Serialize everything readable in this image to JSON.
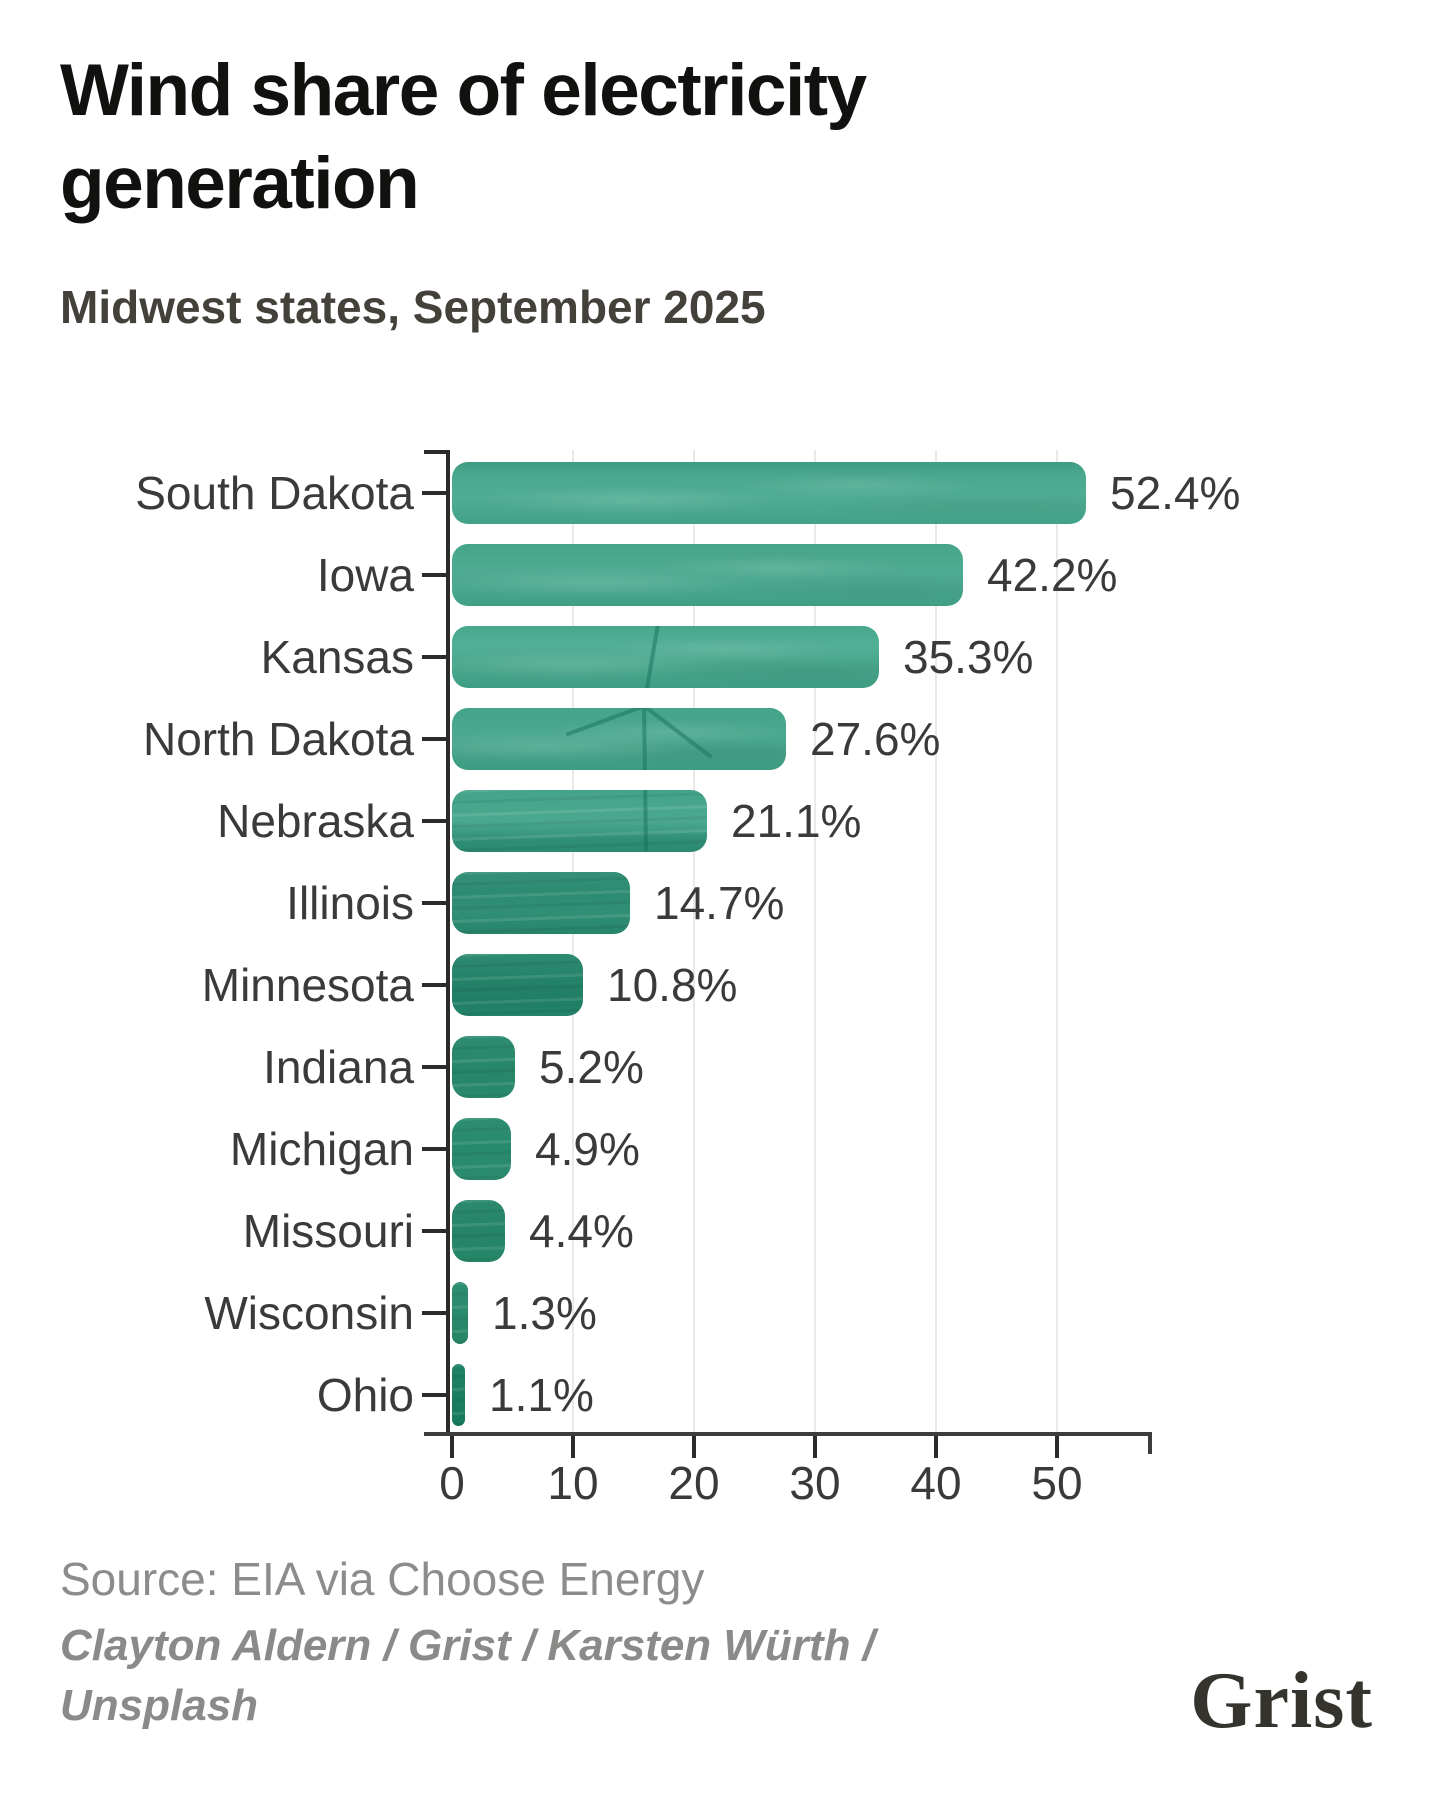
{
  "header": {
    "title": "Wind share of electricity generation",
    "subtitle": "Midwest states, September 2025"
  },
  "chart_data": {
    "type": "bar",
    "orientation": "horizontal",
    "title": "Wind share of electricity generation",
    "subtitle": "Midwest states, September 2025",
    "categories": [
      "South Dakota",
      "Iowa",
      "Kansas",
      "North Dakota",
      "Nebraska",
      "Illinois",
      "Minnesota",
      "Indiana",
      "Michigan",
      "Missouri",
      "Wisconsin",
      "Ohio"
    ],
    "values": [
      52.4,
      42.2,
      35.3,
      27.6,
      21.1,
      14.7,
      10.8,
      5.2,
      4.9,
      4.4,
      1.3,
      1.1
    ],
    "value_labels": [
      "52.4%",
      "42.2%",
      "35.3%",
      "27.6%",
      "21.1%",
      "14.7%",
      "10.8%",
      "5.2%",
      "4.9%",
      "4.4%",
      "1.3%",
      "1.1%"
    ],
    "x_ticks": [
      0,
      10,
      20,
      30,
      40,
      50
    ],
    "xlim": [
      0,
      58
    ],
    "unit": "%",
    "xlabel": "",
    "ylabel": "",
    "grid": "vertical gridlines at x ticks",
    "legend": "none",
    "bar_style": "rounded teal bars filled with wind-turbine photo texture"
  },
  "footer": {
    "source": "Source: EIA via Choose Energy",
    "credit": "Clayton Aldern / Grist / Karsten Würth / Unsplash",
    "logo_text": "Grist"
  },
  "colors": {
    "bar_teal": "#3E9D83",
    "bar_teal_dark": "#1F7E64",
    "title_text": "#111110",
    "subtitle_text": "#44413B",
    "axis_text": "#3B3A38",
    "axis_line": "#2C2B29",
    "gridline": "#E9E9E7",
    "muted_text": "#8C8C8A",
    "logo_text": "#35332D",
    "background": "#FFFFFF"
  }
}
